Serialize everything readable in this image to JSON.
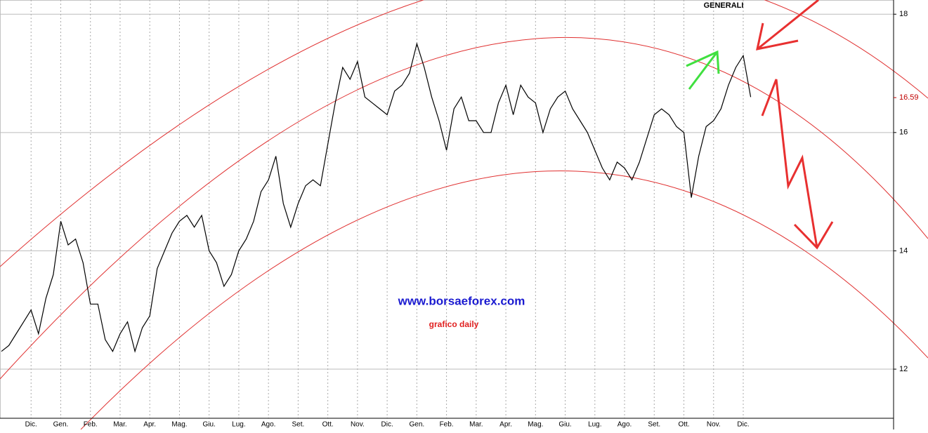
{
  "chart_data": {
    "type": "line",
    "title": "GENERALI",
    "annotations": [
      "www.borsaeforex.com",
      "grafico daily"
    ],
    "last_price": 16.59,
    "categories": [
      null,
      null,
      null,
      null,
      "Dic.",
      null,
      null,
      null,
      "Gen.",
      null,
      null,
      null,
      "Feb.",
      null,
      null,
      null,
      "Mar.",
      null,
      null,
      null,
      "Apr.",
      null,
      null,
      null,
      "Mag.",
      null,
      null,
      null,
      "Giu.",
      null,
      null,
      null,
      "Lug.",
      null,
      null,
      null,
      "Ago.",
      null,
      null,
      null,
      "Set.",
      null,
      null,
      null,
      "Ott.",
      null,
      null,
      null,
      "Nov.",
      null,
      null,
      null,
      "Dic.",
      null,
      null,
      null,
      "Gen.",
      null,
      null,
      null,
      "Feb.",
      null,
      null,
      null,
      "Mar.",
      null,
      null,
      null,
      "Apr.",
      null,
      null,
      null,
      "Mag.",
      null,
      null,
      null,
      "Giu.",
      null,
      null,
      null,
      "Lug.",
      null,
      null,
      null,
      "Ago.",
      null,
      null,
      null,
      "Set.",
      null,
      null,
      null,
      "Ott.",
      null,
      null,
      null,
      "Nov.",
      null,
      null,
      null,
      "Dic.",
      null
    ],
    "series": [
      {
        "color": "#000000",
        "values": [
          12.3,
          12.4,
          12.6,
          12.8,
          13.0,
          12.6,
          13.2,
          13.6,
          14.5,
          14.1,
          14.2,
          13.8,
          13.1,
          13.1,
          12.5,
          12.3,
          12.6,
          12.8,
          12.3,
          12.7,
          12.9,
          13.7,
          14.0,
          14.3,
          14.5,
          14.6,
          14.4,
          14.6,
          14.0,
          13.8,
          13.4,
          13.6,
          14.0,
          14.2,
          14.5,
          15.0,
          15.2,
          15.6,
          14.8,
          14.4,
          14.8,
          15.1,
          15.2,
          15.1,
          15.8,
          16.5,
          17.1,
          16.9,
          17.2,
          16.6,
          16.5,
          16.4,
          16.3,
          16.7,
          16.8,
          17.0,
          17.5,
          17.1,
          16.6,
          16.2,
          15.7,
          16.4,
          16.6,
          16.2,
          16.2,
          16.0,
          16.0,
          16.5,
          16.8,
          16.3,
          16.8,
          16.6,
          16.5,
          16.0,
          16.4,
          16.6,
          16.7,
          16.4,
          16.2,
          16.0,
          15.7,
          15.4,
          15.2,
          15.5,
          15.4,
          15.2,
          15.5,
          15.9,
          16.3,
          16.4,
          16.3,
          16.1,
          16.0,
          14.9,
          15.6,
          16.1,
          16.2,
          16.4,
          16.8,
          17.1,
          17.3,
          16.6
        ]
      }
    ],
    "ylim": [
      11.17,
      18.24
    ],
    "yticks": [
      12,
      14,
      16,
      18
    ],
    "grid": true
  }
}
